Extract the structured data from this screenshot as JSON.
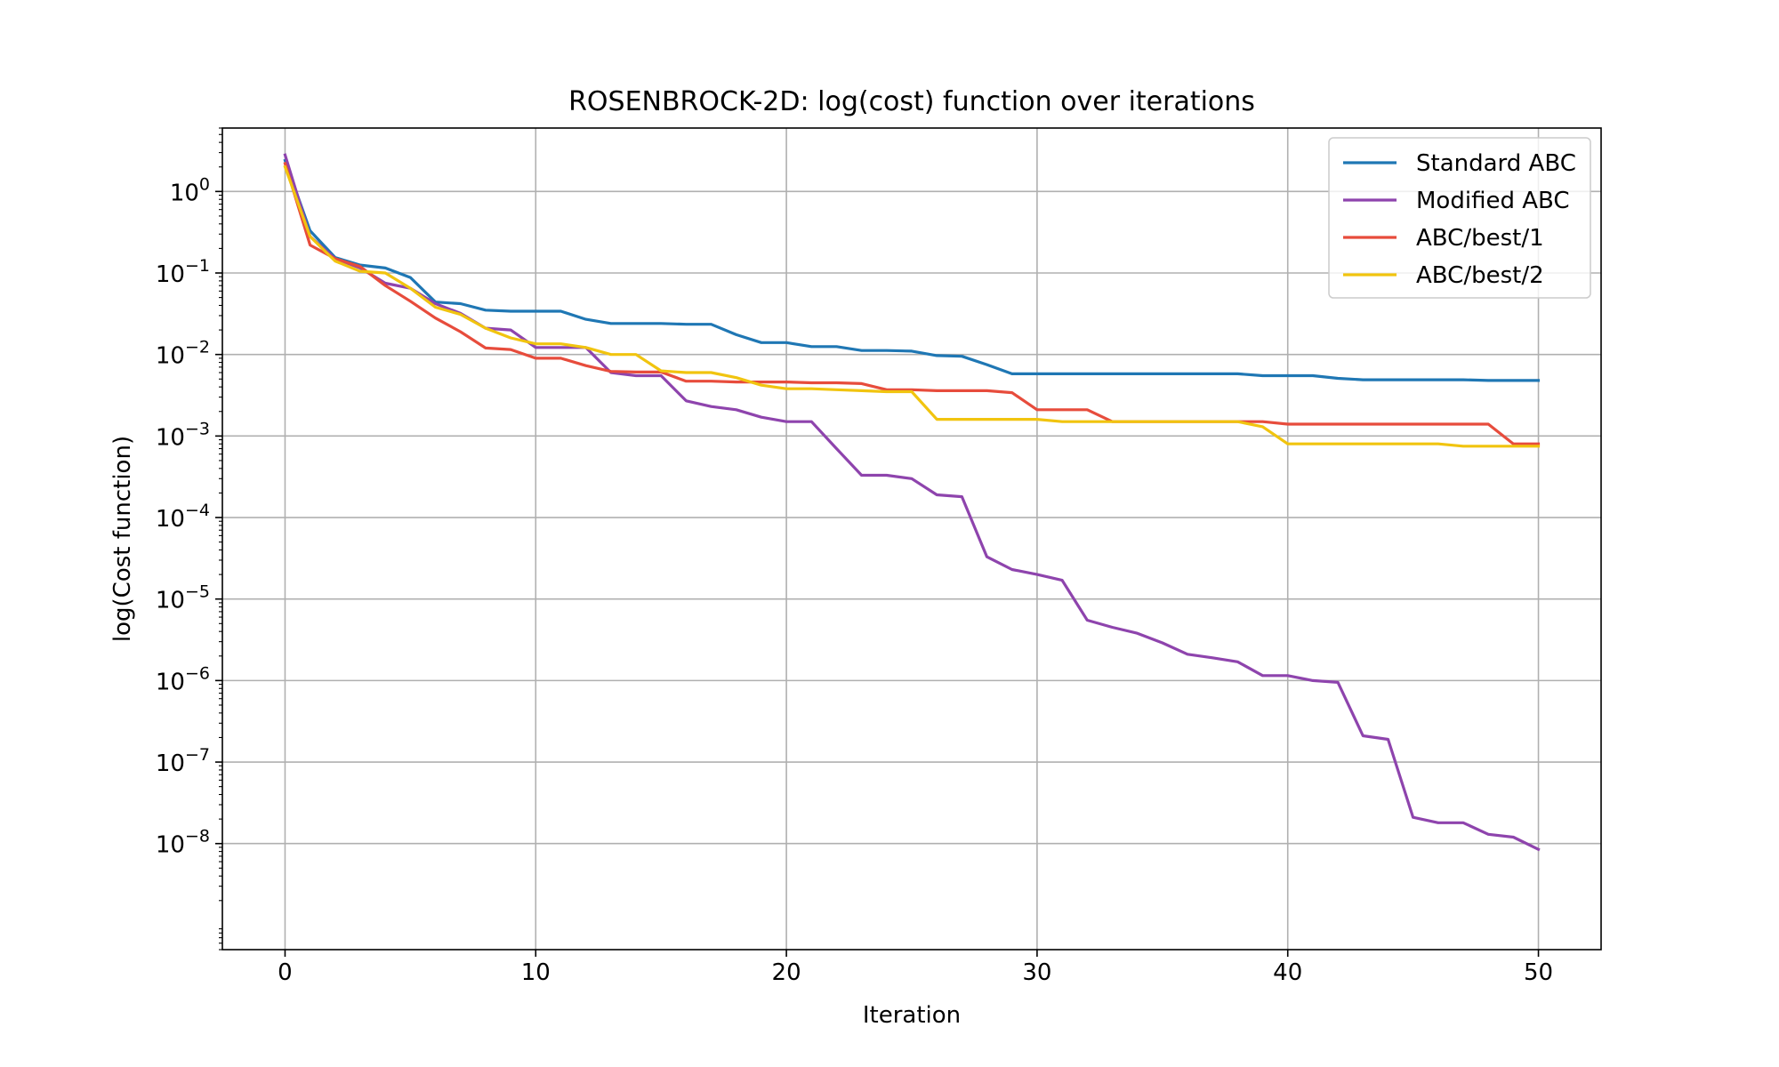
{
  "chart_data": {
    "type": "line",
    "title": "ROSENBROCK-2D: log(cost) function over iterations",
    "xlabel": "Iteration",
    "ylabel": "log(Cost function)",
    "xlim": [
      -2.5,
      52.5
    ],
    "x_ticks": [
      0,
      10,
      20,
      30,
      40,
      50
    ],
    "yscale": "log",
    "ylim": [
      5e-10,
      6.0
    ],
    "y_tick_exponents": [
      0,
      -1,
      -2,
      -3,
      -4,
      -5,
      -6,
      -7,
      -8
    ],
    "grid": true,
    "legend_position": "top-right",
    "x": [
      0,
      1,
      2,
      3,
      4,
      5,
      6,
      7,
      8,
      9,
      10,
      11,
      12,
      13,
      14,
      15,
      16,
      17,
      18,
      19,
      20,
      21,
      22,
      23,
      24,
      25,
      26,
      27,
      28,
      29,
      30,
      31,
      32,
      33,
      34,
      35,
      36,
      37,
      38,
      39,
      40,
      41,
      42,
      43,
      44,
      45,
      46,
      47,
      48,
      49,
      50
    ],
    "series": [
      {
        "name": "Standard ABC",
        "color": "#1f77b4",
        "values": [
          2.4,
          0.33,
          0.155,
          0.125,
          0.115,
          0.088,
          0.044,
          0.042,
          0.035,
          0.034,
          0.034,
          0.034,
          0.027,
          0.024,
          0.024,
          0.024,
          0.0235,
          0.0235,
          0.0175,
          0.014,
          0.014,
          0.0125,
          0.0125,
          0.0112,
          0.0112,
          0.011,
          0.0097,
          0.0095,
          0.0075,
          0.0058,
          0.0058,
          0.0058,
          0.0058,
          0.0058,
          0.0058,
          0.0058,
          0.0058,
          0.0058,
          0.0058,
          0.0055,
          0.0055,
          0.0055,
          0.0051,
          0.0049,
          0.0049,
          0.0049,
          0.0049,
          0.0049,
          0.0048,
          0.0048,
          0.0048
        ]
      },
      {
        "name": "Modified ABC",
        "color": "#8e44ad",
        "values": [
          2.8,
          0.28,
          0.15,
          0.115,
          0.075,
          0.065,
          0.042,
          0.032,
          0.021,
          0.02,
          0.0122,
          0.0122,
          0.0122,
          0.006,
          0.0055,
          0.0055,
          0.0027,
          0.0023,
          0.0021,
          0.0017,
          0.0015,
          0.0015,
          0.0007,
          0.00033,
          0.00033,
          0.0003,
          0.00019,
          0.00018,
          3.3e-05,
          2.3e-05,
          2e-05,
          1.7e-05,
          5.5e-06,
          4.5e-06,
          3.8e-06,
          2.9e-06,
          2.1e-06,
          1.9e-06,
          1.7e-06,
          1.15e-06,
          1.15e-06,
          1e-06,
          9.5e-07,
          2.1e-07,
          1.9e-07,
          2.1e-08,
          1.8e-08,
          1.8e-08,
          1.3e-08,
          1.2e-08,
          8.5e-09
        ]
      },
      {
        "name": "ABC/best/1",
        "color": "#e74c3c",
        "values": [
          2.2,
          0.22,
          0.15,
          0.12,
          0.07,
          0.045,
          0.028,
          0.019,
          0.012,
          0.0115,
          0.009,
          0.009,
          0.0073,
          0.0062,
          0.0061,
          0.0061,
          0.0047,
          0.0047,
          0.0046,
          0.0046,
          0.0046,
          0.0045,
          0.0045,
          0.0044,
          0.0037,
          0.0037,
          0.0036,
          0.0036,
          0.0036,
          0.0034,
          0.0021,
          0.0021,
          0.0021,
          0.0015,
          0.0015,
          0.0015,
          0.0015,
          0.0015,
          0.0015,
          0.0015,
          0.0014,
          0.0014,
          0.0014,
          0.0014,
          0.0014,
          0.0014,
          0.0014,
          0.0014,
          0.0014,
          0.0008,
          0.0008
        ]
      },
      {
        "name": "ABC/best/2",
        "color": "#f1c40f",
        "values": [
          2.0,
          0.28,
          0.14,
          0.105,
          0.1,
          0.065,
          0.038,
          0.031,
          0.021,
          0.016,
          0.0135,
          0.0135,
          0.0122,
          0.01,
          0.01,
          0.0063,
          0.006,
          0.006,
          0.0052,
          0.0042,
          0.0038,
          0.0038,
          0.0037,
          0.0036,
          0.0035,
          0.0035,
          0.0016,
          0.0016,
          0.0016,
          0.0016,
          0.0016,
          0.0015,
          0.0015,
          0.0015,
          0.0015,
          0.0015,
          0.0015,
          0.0015,
          0.0015,
          0.0013,
          0.0008,
          0.0008,
          0.0008,
          0.0008,
          0.0008,
          0.0008,
          0.0008,
          0.00075,
          0.00075,
          0.00075,
          0.00075
        ]
      }
    ]
  }
}
